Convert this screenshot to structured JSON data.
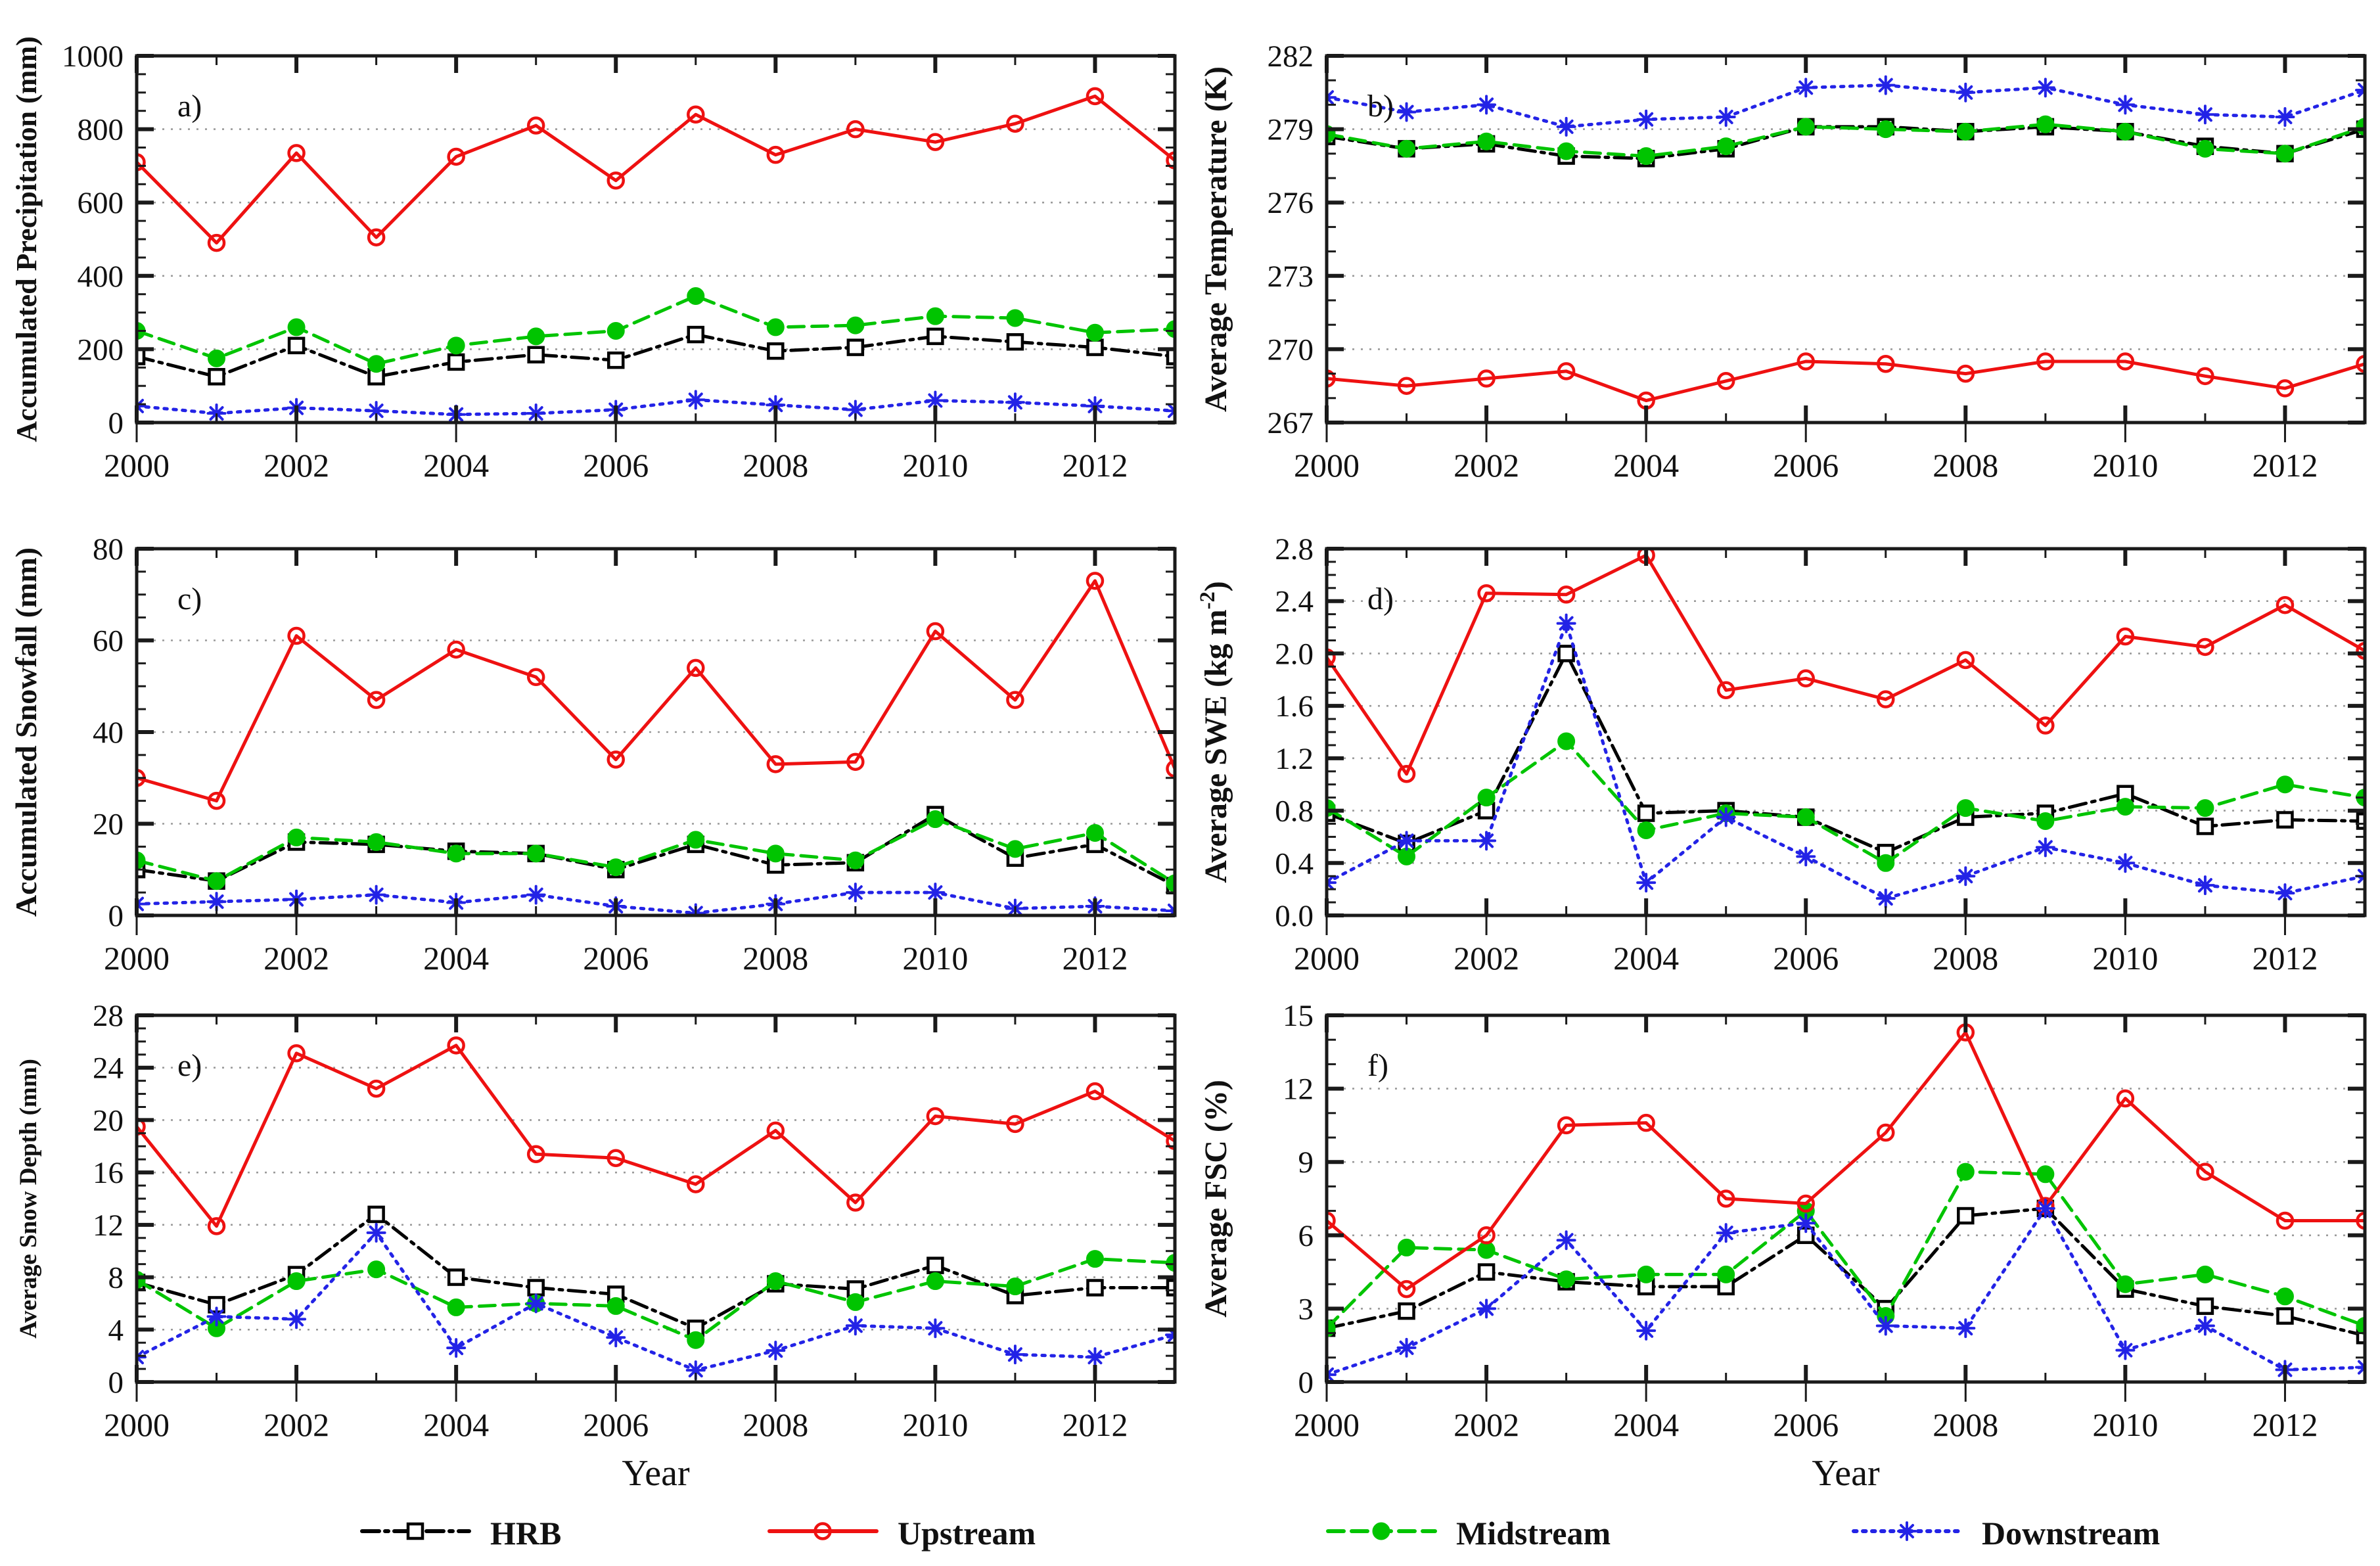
{
  "figure": {
    "xlabel": "Year",
    "background": "#ffffff",
    "frame_color": "#1a1a1a",
    "grid_color": "#9a9a9a",
    "text_color": "#111111"
  },
  "x": [
    2000,
    2001,
    2002,
    2003,
    2004,
    2005,
    2006,
    2007,
    2008,
    2009,
    2010,
    2011,
    2012,
    2013
  ],
  "x_major_ticks": [
    2000,
    2002,
    2004,
    2006,
    2008,
    2010,
    2012
  ],
  "x_minor_ticks": [
    2001,
    2003,
    2005,
    2007,
    2009,
    2011
  ],
  "xlim": [
    2000,
    2013
  ],
  "series_meta": [
    {
      "id": "hrb",
      "label": "HRB",
      "color": "#000000",
      "marker": "square-open",
      "dash": "dashdot"
    },
    {
      "id": "upstream",
      "label": "Upstream",
      "color": "#ee1111",
      "marker": "circle-open",
      "dash": "solid"
    },
    {
      "id": "midstream",
      "label": "Midstream",
      "color": "#00c400",
      "marker": "circle-filled",
      "dash": "dashed"
    },
    {
      "id": "downstream",
      "label": "Downstream",
      "color": "#2323e6",
      "marker": "asterisk",
      "dash": "dotted"
    }
  ],
  "legend": {
    "items": [
      {
        "series": "hrb",
        "label": "HRB"
      },
      {
        "series": "upstream",
        "label": "Upstream"
      },
      {
        "series": "midstream",
        "label": "Midstream"
      },
      {
        "series": "downstream",
        "label": "Downstream"
      }
    ]
  },
  "chart_data": [
    {
      "type": "line",
      "panel": "a",
      "letter": "a)",
      "ylabel": "Accumulated Precipitation (mm)",
      "ylim": [
        0,
        1000
      ],
      "yticks": [
        0,
        200,
        400,
        600,
        800,
        1000
      ],
      "ytick_labels": [
        "0",
        "200",
        "400",
        "600",
        "800",
        "1000"
      ],
      "y_minor_step": 50,
      "gridlines": [
        200,
        400,
        600,
        800
      ],
      "series": [
        {
          "id": "hrb",
          "name": "HRB",
          "values": [
            180,
            125,
            210,
            125,
            165,
            185,
            170,
            240,
            195,
            205,
            235,
            220,
            205,
            180
          ]
        },
        {
          "id": "upstream",
          "name": "Upstream",
          "values": [
            710,
            490,
            735,
            505,
            725,
            810,
            660,
            840,
            730,
            800,
            765,
            815,
            890,
            715
          ]
        },
        {
          "id": "midstream",
          "name": "Midstream",
          "values": [
            250,
            175,
            260,
            160,
            210,
            235,
            250,
            345,
            260,
            265,
            290,
            285,
            245,
            255
          ]
        },
        {
          "id": "downstream",
          "name": "Downstream",
          "values": [
            45,
            25,
            40,
            32,
            22,
            25,
            35,
            62,
            48,
            35,
            60,
            55,
            45,
            32
          ]
        }
      ]
    },
    {
      "type": "line",
      "panel": "b",
      "letter": "b)",
      "ylabel": "Average Temperature (K)",
      "ylim": [
        267,
        282
      ],
      "yticks": [
        267,
        270,
        273,
        276,
        279,
        282
      ],
      "ytick_labels": [
        "267",
        "270",
        "273",
        "276",
        "279",
        "282"
      ],
      "y_minor_step": 1,
      "gridlines": [
        270,
        273,
        276,
        279
      ],
      "series": [
        {
          "id": "hrb",
          "name": "HRB",
          "values": [
            278.7,
            278.2,
            278.4,
            277.9,
            277.8,
            278.2,
            279.1,
            279.1,
            278.9,
            279.1,
            278.9,
            278.3,
            278.0,
            279.0
          ]
        },
        {
          "id": "upstream",
          "name": "Upstream",
          "values": [
            268.8,
            268.5,
            268.8,
            269.1,
            267.9,
            268.7,
            269.5,
            269.4,
            269.0,
            269.5,
            269.5,
            268.9,
            268.4,
            269.4
          ]
        },
        {
          "id": "midstream",
          "name": "Midstream",
          "values": [
            278.8,
            278.2,
            278.5,
            278.1,
            277.9,
            278.3,
            279.1,
            279.0,
            278.9,
            279.2,
            278.9,
            278.2,
            278.0,
            279.1
          ]
        },
        {
          "id": "downstream",
          "name": "Downstream",
          "values": [
            280.3,
            279.7,
            280.0,
            279.1,
            279.4,
            279.5,
            280.7,
            280.8,
            280.5,
            280.7,
            280.0,
            279.6,
            279.5,
            280.6
          ]
        }
      ]
    },
    {
      "type": "line",
      "panel": "c",
      "letter": "c)",
      "ylabel": "Accumulated Snowfall (mm)",
      "ylim": [
        0,
        80
      ],
      "yticks": [
        0,
        20,
        40,
        60,
        80
      ],
      "ytick_labels": [
        "0",
        "20",
        "40",
        "60",
        "80"
      ],
      "y_minor_step": 5,
      "gridlines": [
        20,
        40,
        60
      ],
      "series": [
        {
          "id": "hrb",
          "name": "HRB",
          "values": [
            10,
            7.5,
            16,
            15.5,
            14,
            13.5,
            10,
            15.5,
            11,
            11.5,
            22,
            12.5,
            15.5,
            6.5
          ]
        },
        {
          "id": "upstream",
          "name": "Upstream",
          "values": [
            30,
            25,
            61,
            47,
            58,
            52,
            34,
            54,
            33,
            33.5,
            62,
            47,
            73,
            32
          ]
        },
        {
          "id": "midstream",
          "name": "Midstream",
          "values": [
            12,
            7.5,
            17,
            16,
            13.5,
            13.5,
            10.5,
            16.5,
            13.5,
            12,
            21,
            14.5,
            18,
            7
          ]
        },
        {
          "id": "downstream",
          "name": "Downstream",
          "values": [
            2.5,
            3,
            3.5,
            4.5,
            2.8,
            4.5,
            2,
            0.5,
            2.5,
            5,
            5,
            1.5,
            2,
            1
          ]
        }
      ]
    },
    {
      "type": "line",
      "panel": "d",
      "letter": "d)",
      "ylabel": "Average SWE (kg m⁻²)",
      "ylabel_parts": {
        "pre": "Average SWE (kg m",
        "sup": "-2",
        "post": ")"
      },
      "ylim": [
        0,
        2.8
      ],
      "yticks": [
        0,
        0.4,
        0.8,
        1.2,
        1.6,
        2.0,
        2.4,
        2.8
      ],
      "ytick_labels": [
        "0.0",
        "0.4",
        "0.8",
        "1.2",
        "1.6",
        "2.0",
        "2.4",
        "2.8"
      ],
      "y_minor_step": 0.1,
      "gridlines": [
        0.4,
        0.8,
        1.2,
        1.6,
        2.0,
        2.4
      ],
      "series": [
        {
          "id": "hrb",
          "name": "HRB",
          "values": [
            0.78,
            0.55,
            0.8,
            2.0,
            0.78,
            0.8,
            0.75,
            0.48,
            0.75,
            0.78,
            0.93,
            0.68,
            0.73,
            0.72
          ]
        },
        {
          "id": "upstream",
          "name": "Upstream",
          "values": [
            1.97,
            1.08,
            2.46,
            2.45,
            2.75,
            1.72,
            1.81,
            1.65,
            1.95,
            1.45,
            2.13,
            2.05,
            2.37,
            2.02
          ]
        },
        {
          "id": "midstream",
          "name": "Midstream",
          "values": [
            0.82,
            0.45,
            0.9,
            1.33,
            0.65,
            0.78,
            0.75,
            0.4,
            0.82,
            0.72,
            0.83,
            0.82,
            1.0,
            0.9
          ]
        },
        {
          "id": "downstream",
          "name": "Downstream",
          "values": [
            0.25,
            0.57,
            0.57,
            2.23,
            0.25,
            0.75,
            0.45,
            0.13,
            0.3,
            0.52,
            0.4,
            0.23,
            0.17,
            0.3
          ]
        }
      ]
    },
    {
      "type": "line",
      "panel": "e",
      "letter": "e)",
      "ylabel": "Average Snow Depth (mm)",
      "ylim": [
        0,
        28
      ],
      "yticks": [
        0,
        4,
        8,
        12,
        16,
        20,
        24,
        28
      ],
      "ytick_labels": [
        "0",
        "4",
        "8",
        "12",
        "16",
        "20",
        "24",
        "28"
      ],
      "y_minor_step": 1,
      "gridlines": [
        4,
        8,
        12,
        16,
        20,
        24
      ],
      "series": [
        {
          "id": "hrb",
          "name": "HRB",
          "values": [
            7.6,
            5.9,
            8.2,
            12.8,
            8.0,
            7.2,
            6.7,
            4.1,
            7.5,
            7.1,
            8.9,
            6.6,
            7.2,
            7.2
          ]
        },
        {
          "id": "upstream",
          "name": "Upstream",
          "values": [
            19.5,
            11.9,
            25.1,
            22.4,
            25.7,
            17.4,
            17.1,
            15.1,
            19.2,
            13.7,
            20.3,
            19.7,
            22.2,
            18.4
          ]
        },
        {
          "id": "midstream",
          "name": "Midstream",
          "values": [
            7.8,
            4.1,
            7.7,
            8.6,
            5.7,
            6.0,
            5.8,
            3.2,
            7.7,
            6.1,
            7.7,
            7.3,
            9.4,
            9.1
          ]
        },
        {
          "id": "downstream",
          "name": "Downstream",
          "values": [
            1.9,
            5.0,
            4.8,
            11.4,
            2.6,
            6.0,
            3.4,
            0.9,
            2.4,
            4.3,
            4.1,
            2.1,
            1.9,
            3.6
          ]
        }
      ]
    },
    {
      "type": "line",
      "panel": "f",
      "letter": "f)",
      "ylabel": "Average FSC (%)",
      "ylim": [
        0,
        15
      ],
      "yticks": [
        0,
        3,
        6,
        9,
        12,
        15
      ],
      "ytick_labels": [
        "0",
        "3",
        "6",
        "9",
        "12",
        "15"
      ],
      "y_minor_step": 1,
      "gridlines": [
        3,
        6,
        9,
        12
      ],
      "series": [
        {
          "id": "hrb",
          "name": "HRB",
          "values": [
            2.2,
            2.9,
            4.5,
            4.1,
            3.9,
            3.9,
            6.0,
            3.0,
            6.8,
            7.1,
            3.8,
            3.1,
            2.7,
            1.9
          ]
        },
        {
          "id": "upstream",
          "name": "Upstream",
          "values": [
            6.6,
            3.8,
            6.0,
            10.5,
            10.6,
            7.5,
            7.3,
            10.2,
            14.3,
            7.2,
            11.6,
            8.6,
            6.6,
            6.6
          ]
        },
        {
          "id": "midstream",
          "name": "Midstream",
          "values": [
            2.2,
            5.5,
            5.4,
            4.2,
            4.4,
            4.4,
            7.0,
            2.7,
            8.6,
            8.5,
            4.0,
            4.4,
            3.5,
            2.3
          ]
        },
        {
          "id": "downstream",
          "name": "Downstream",
          "values": [
            0.3,
            1.4,
            3.0,
            5.8,
            2.1,
            6.1,
            6.5,
            2.3,
            2.2,
            7.1,
            1.3,
            2.3,
            0.5,
            0.6
          ]
        }
      ]
    }
  ]
}
